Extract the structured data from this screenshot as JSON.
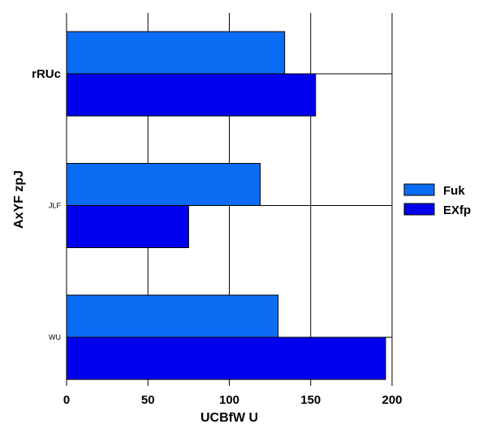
{
  "chart_data": {
    "type": "bar",
    "orientation": "horizontal",
    "title": "",
    "xlabel": "UCBfW U",
    "ylabel": "AxYF zpJ",
    "categories": [
      "rRUc",
      "JLF",
      "WU"
    ],
    "series": [
      {
        "name": "Fuk",
        "color": "#0a6cf2",
        "values": [
          134,
          119,
          130
        ]
      },
      {
        "name": "EXfp",
        "color": "#0000ee",
        "values": [
          153,
          75,
          196
        ]
      }
    ],
    "xlim": [
      0,
      200
    ],
    "xticks": [
      "0",
      "50",
      "100",
      "150",
      "200"
    ],
    "grid": true,
    "legend_position": "right"
  }
}
